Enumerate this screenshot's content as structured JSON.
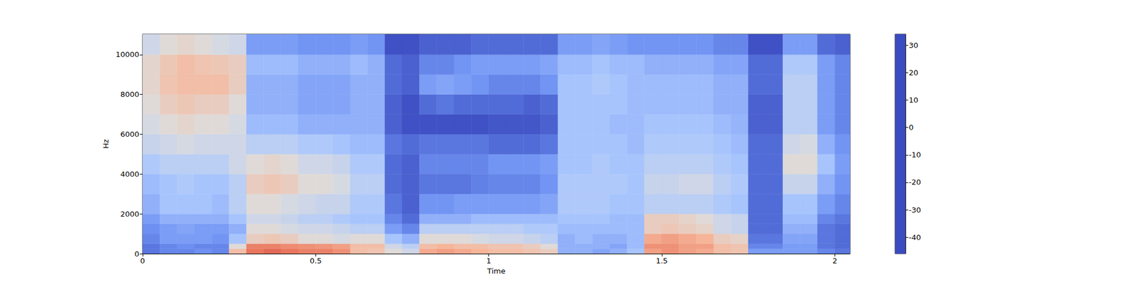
{
  "chart_data": {
    "type": "heatmap",
    "xlabel": "Time",
    "ylabel": "Hz",
    "xlim": [
      0,
      2.044
    ],
    "xticks": [
      0,
      0.5,
      1,
      1.5,
      2
    ],
    "ylim": [
      0,
      11025
    ],
    "yticks": [
      0,
      2000,
      4000,
      6000,
      8000,
      10000
    ],
    "time_bins": [
      0,
      0.05,
      0.1,
      0.15,
      0.2,
      0.25,
      0.3,
      0.35,
      0.4,
      0.45,
      0.5,
      0.55,
      0.6,
      0.65,
      0.7,
      0.75,
      0.8,
      0.85,
      0.9,
      0.95,
      1.0,
      1.05,
      1.1,
      1.15,
      1.2,
      1.25,
      1.3,
      1.35,
      1.4,
      1.45,
      1.5,
      1.55,
      1.6,
      1.65,
      1.7,
      1.75,
      1.8,
      1.85,
      1.9,
      1.95,
      2.0,
      2.044
    ],
    "freq_bins": [
      0,
      250,
      500,
      1000,
      1500,
      2000,
      3000,
      4000,
      5000,
      6000,
      7000,
      8000,
      9000,
      10000,
      11025
    ],
    "values": [
      [
        -38,
        -38,
        -35,
        -33,
        -30,
        -25,
        -22,
        -18,
        -12,
        -8,
        -5,
        -3,
        -3,
        -10
      ],
      [
        -35,
        -35,
        -30,
        -30,
        -25,
        -20,
        -20,
        -15,
        -10,
        -5,
        0,
        3,
        2,
        -5
      ],
      [
        -35,
        -33,
        -30,
        -28,
        -25,
        -20,
        -18,
        -15,
        -8,
        -3,
        2,
        5,
        5,
        -3
      ],
      [
        -33,
        -35,
        -30,
        -30,
        -25,
        -20,
        -20,
        -15,
        -10,
        -5,
        0,
        5,
        3,
        -5
      ],
      [
        -35,
        -35,
        -32,
        -30,
        -25,
        -22,
        -20,
        -15,
        -10,
        -5,
        0,
        5,
        2,
        -8
      ],
      [
        5,
        -5,
        -20,
        -25,
        -20,
        -15,
        -15,
        -10,
        -10,
        -8,
        -5,
        0,
        0,
        -10
      ],
      [
        20,
        18,
        0,
        -5,
        -10,
        -5,
        0,
        -5,
        -15,
        -22,
        -25,
        -25,
        -22,
        -30
      ],
      [
        22,
        18,
        2,
        -5,
        -10,
        -5,
        2,
        -3,
        -15,
        -22,
        -25,
        -25,
        -22,
        -30
      ],
      [
        20,
        16,
        0,
        -8,
        -12,
        -8,
        0,
        -5,
        -15,
        -22,
        -25,
        -25,
        -22,
        -30
      ],
      [
        18,
        15,
        -5,
        -10,
        -15,
        -10,
        -5,
        -10,
        -18,
        -25,
        -28,
        -28,
        -25,
        -32
      ],
      [
        18,
        14,
        -5,
        -10,
        -15,
        -12,
        -5,
        -10,
        -18,
        -25,
        -28,
        -28,
        -25,
        -32
      ],
      [
        15,
        12,
        -8,
        -12,
        -18,
        -12,
        -8,
        -12,
        -20,
        -25,
        -28,
        -28,
        -25,
        -32
      ],
      [
        5,
        5,
        -5,
        -15,
        -20,
        -18,
        -15,
        -18,
        -22,
        -25,
        -25,
        -25,
        -22,
        -30
      ],
      [
        3,
        5,
        -5,
        -15,
        -20,
        -18,
        -15,
        -18,
        -22,
        -25,
        -25,
        -25,
        -25,
        -32
      ],
      [
        -5,
        -10,
        -20,
        -30,
        -35,
        -38,
        -40,
        -40,
        -38,
        -42,
        -42,
        -40,
        -40,
        -45
      ],
      [
        -10,
        -15,
        -25,
        -35,
        -40,
        -42,
        -42,
        -42,
        -40,
        -45,
        -45,
        -42,
        -42,
        -45
      ],
      [
        10,
        5,
        -5,
        -15,
        -25,
        -32,
        -38,
        -35,
        -38,
        -45,
        -40,
        -30,
        -35,
        -42
      ],
      [
        12,
        8,
        -5,
        -15,
        -25,
        -32,
        -38,
        -35,
        -38,
        -45,
        -38,
        -28,
        -35,
        -42
      ],
      [
        10,
        5,
        -5,
        -15,
        -25,
        -30,
        -38,
        -35,
        -38,
        -45,
        -40,
        -30,
        -32,
        -42
      ],
      [
        8,
        5,
        -8,
        -15,
        -22,
        -30,
        -36,
        -35,
        -38,
        -45,
        -40,
        -32,
        -30,
        -40
      ],
      [
        5,
        3,
        -10,
        -15,
        -22,
        -30,
        -35,
        -32,
        -40,
        -44,
        -40,
        -35,
        -30,
        -40
      ],
      [
        5,
        3,
        -10,
        -15,
        -22,
        -30,
        -35,
        -32,
        -40,
        -44,
        -40,
        -35,
        -30,
        -40
      ],
      [
        3,
        0,
        -12,
        -18,
        -22,
        -30,
        -35,
        -32,
        -40,
        -44,
        -42,
        -35,
        -30,
        -40
      ],
      [
        0,
        -5,
        -15,
        -18,
        -22,
        -28,
        -32,
        -30,
        -38,
        -42,
        -40,
        -32,
        -28,
        -40
      ],
      [
        -25,
        -25,
        -25,
        -22,
        -20,
        -18,
        -18,
        -20,
        -20,
        -20,
        -20,
        -20,
        -22,
        -30
      ],
      [
        -25,
        -25,
        -22,
        -22,
        -20,
        -18,
        -18,
        -20,
        -20,
        -20,
        -20,
        -20,
        -22,
        -30
      ],
      [
        -28,
        -25,
        -25,
        -22,
        -20,
        -18,
        -18,
        -18,
        -20,
        -20,
        -20,
        -18,
        -20,
        -28
      ],
      [
        -25,
        -28,
        -25,
        -22,
        -22,
        -20,
        -18,
        -20,
        -20,
        -22,
        -20,
        -20,
        -22,
        -30
      ],
      [
        -20,
        -22,
        -22,
        -22,
        -22,
        -20,
        -20,
        -20,
        -22,
        -22,
        -22,
        -22,
        -22,
        -32
      ],
      [
        12,
        15,
        10,
        0,
        0,
        -15,
        -12,
        -15,
        -18,
        -20,
        -22,
        -22,
        -25,
        -32
      ],
      [
        15,
        15,
        12,
        2,
        0,
        -15,
        -12,
        -15,
        -18,
        -20,
        -22,
        -22,
        -25,
        -32
      ],
      [
        12,
        12,
        10,
        0,
        -2,
        -15,
        -10,
        -15,
        -18,
        -20,
        -22,
        -22,
        -25,
        -32
      ],
      [
        10,
        12,
        8,
        -2,
        -5,
        -15,
        -10,
        -15,
        -18,
        -20,
        -22,
        -22,
        -25,
        -32
      ],
      [
        5,
        5,
        0,
        -10,
        -10,
        -18,
        -15,
        -18,
        -20,
        -22,
        -25,
        -25,
        -28,
        -35
      ],
      [
        3,
        3,
        -2,
        -12,
        -12,
        -20,
        -18,
        -20,
        -22,
        -24,
        -25,
        -25,
        -28,
        -35
      ],
      [
        -30,
        -35,
        -38,
        -40,
        -40,
        -40,
        -40,
        -40,
        -40,
        -42,
        -42,
        -40,
        -40,
        -45
      ],
      [
        -30,
        -35,
        -38,
        -40,
        -40,
        -40,
        -40,
        -40,
        -40,
        -42,
        -42,
        -40,
        -40,
        -45
      ],
      [
        -30,
        -30,
        -28,
        -25,
        -22,
        -20,
        -12,
        -5,
        -10,
        -15,
        -15,
        -15,
        -18,
        -30
      ],
      [
        -30,
        -30,
        -28,
        -25,
        -22,
        -20,
        -12,
        -5,
        -8,
        -15,
        -15,
        -15,
        -18,
        -30
      ],
      [
        -35,
        -38,
        -38,
        -38,
        -35,
        -30,
        -25,
        -20,
        -25,
        -30,
        -30,
        -30,
        -30,
        -40
      ],
      [
        -38,
        -40,
        -40,
        -40,
        -38,
        -35,
        -32,
        -30,
        -32,
        -35,
        -35,
        -35,
        -35,
        -42
      ]
    ],
    "colorbar": {
      "range": [
        -46,
        34
      ],
      "ticks": [
        -40,
        -30,
        -20,
        -10,
        0,
        10,
        20,
        30
      ]
    }
  }
}
